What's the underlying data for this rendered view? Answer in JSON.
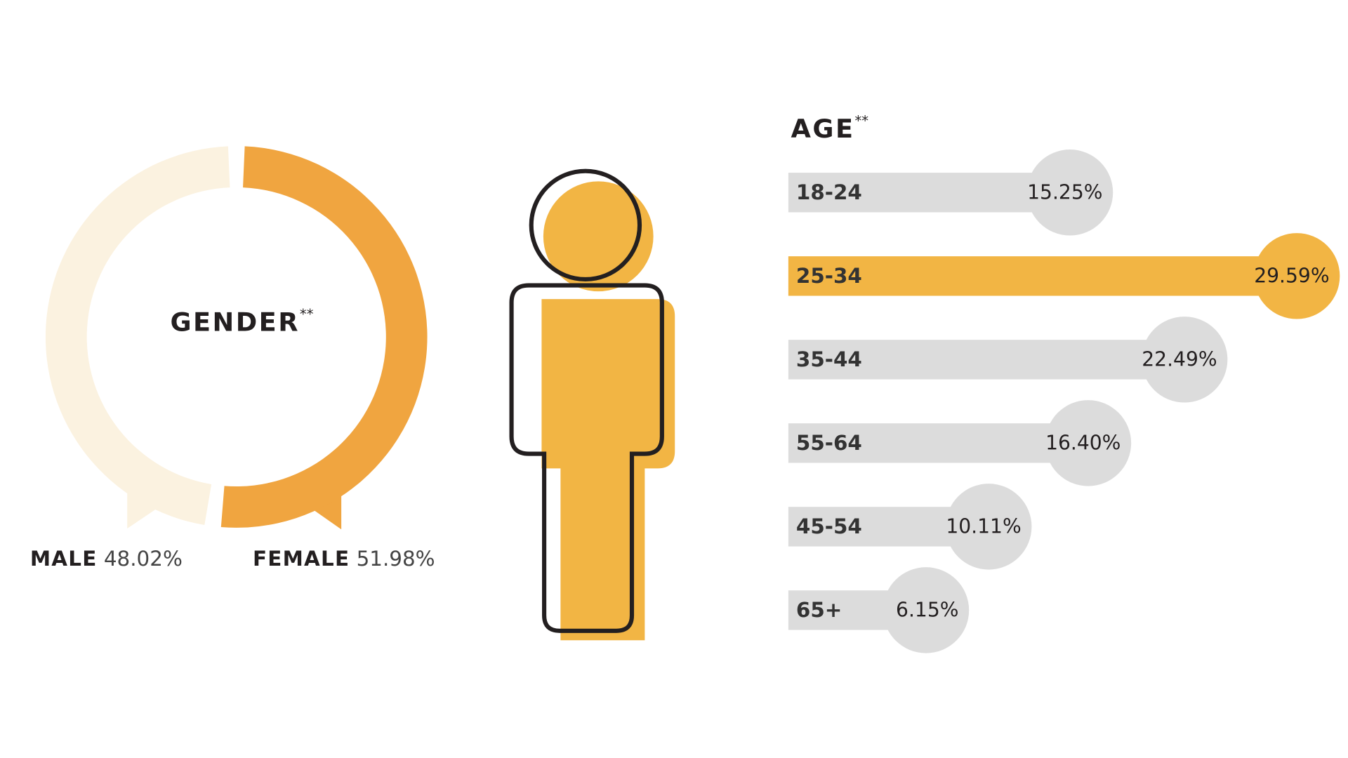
{
  "chart_data": [
    {
      "type": "pie",
      "title": "GENDER",
      "title_note": "**",
      "categories": [
        "MALE",
        "FEMALE"
      ],
      "values": [
        48.02,
        51.98
      ],
      "value_labels": [
        "48.02%",
        "51.98%"
      ],
      "colors": [
        "#fbf2e0",
        "#f0a540"
      ]
    },
    {
      "type": "bar",
      "orientation": "horizontal",
      "title": "AGE",
      "title_note": "**",
      "categories": [
        "18-24",
        "25-34",
        "35-44",
        "55-64",
        "45-54",
        "65+"
      ],
      "values": [
        15.25,
        29.59,
        22.49,
        16.4,
        10.11,
        6.15
      ],
      "value_labels": [
        "15.25%",
        "29.59%",
        "22.49%",
        "16.40%",
        "10.11%",
        "6.15%"
      ],
      "colors": [
        "#dcdcdc",
        "#f2b544",
        "#dcdcdc",
        "#dcdcdc",
        "#dcdcdc",
        "#dcdcdc"
      ]
    }
  ]
}
